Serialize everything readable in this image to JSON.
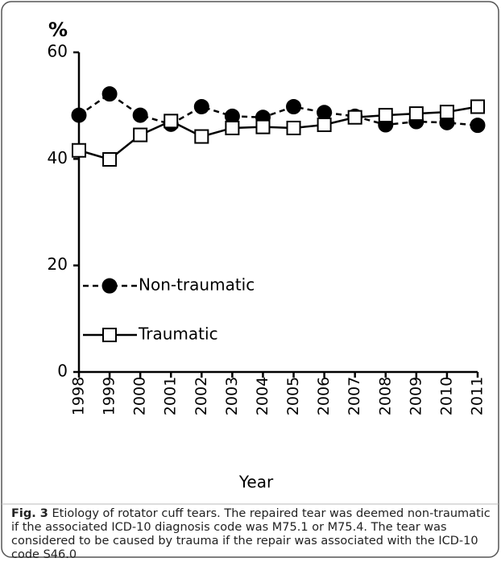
{
  "chart_data": {
    "type": "line",
    "y_label": "%",
    "x_label": "Year",
    "x": [
      1998,
      1999,
      2000,
      2001,
      2002,
      2003,
      2004,
      2005,
      2006,
      2007,
      2008,
      2009,
      2010,
      2011
    ],
    "xlim": [
      1998,
      2011
    ],
    "ylim": [
      0,
      60
    ],
    "yticks": [
      0,
      20,
      40,
      60
    ],
    "series": [
      {
        "name": "Non-traumatic",
        "color": "#000000",
        "line_style": "dashed",
        "marker": "circle",
        "marker_fill": "#000000",
        "values": [
          48.2,
          52.2,
          48.2,
          46.5,
          49.8,
          48.0,
          47.8,
          49.8,
          48.7,
          48.0,
          46.4,
          47.0,
          46.8,
          46.3
        ]
      },
      {
        "name": "Traumatic",
        "color": "#000000",
        "line_style": "solid",
        "marker": "square",
        "marker_fill": "#ffffff",
        "values": [
          41.6,
          39.9,
          44.5,
          47.1,
          44.2,
          45.8,
          46.0,
          45.8,
          46.4,
          47.8,
          48.2,
          48.5,
          48.8,
          49.8
        ]
      }
    ],
    "caption_label": "Fig. 3",
    "caption": "Etiology of rotator cuff tears. The repaired tear was deemed non-traumatic if the associated ICD-10 diagnosis code was M75.1 or M75.4. The tear was considered to be caused by trauma if the repair was associated with the ICD-10 code S46.0"
  }
}
